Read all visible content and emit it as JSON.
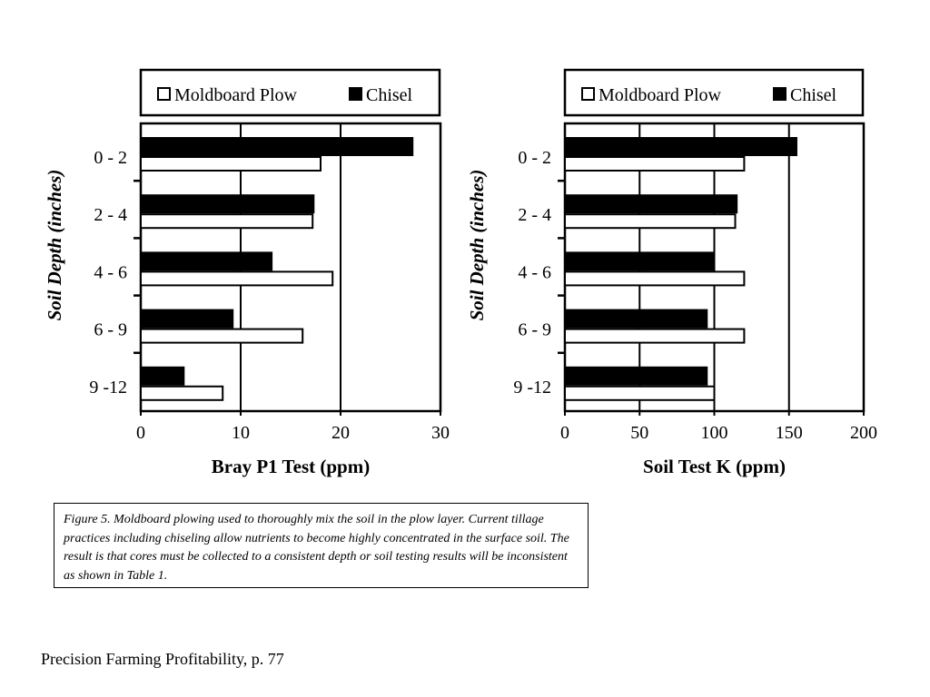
{
  "chart_data": [
    {
      "type": "bar",
      "orientation": "horizontal",
      "categories": [
        "0 - 2",
        "2 - 4",
        "4 - 6",
        "6 - 9",
        "9 -12"
      ],
      "series": [
        {
          "name": "Moldboard Plow",
          "color": "#ffffff",
          "values": [
            18,
            17.2,
            19.2,
            16.2,
            8.2
          ]
        },
        {
          "name": "Chisel",
          "color": "#000000",
          "values": [
            27.2,
            17.3,
            13.1,
            9.2,
            4.3
          ]
        }
      ],
      "xlabel": "Bray P1 Test (ppm)",
      "ylabel": "Soil Depth (inches)",
      "xlim": [
        0,
        30
      ],
      "xticks": [
        "0",
        "10",
        "20",
        "30"
      ],
      "grid": "vertical",
      "legend": "top"
    },
    {
      "type": "bar",
      "orientation": "horizontal",
      "categories": [
        "0 - 2",
        "2 - 4",
        "4 - 6",
        "6 - 9",
        "9 -12"
      ],
      "series": [
        {
          "name": "Moldboard Plow",
          "color": "#ffffff",
          "values": [
            120,
            114,
            120,
            120,
            100
          ]
        },
        {
          "name": "Chisel",
          "color": "#000000",
          "values": [
            155,
            115,
            100,
            95,
            95
          ]
        }
      ],
      "xlabel": "Soil Test K (ppm)",
      "ylabel": "Soil Depth (inches)",
      "xlim": [
        0,
        200
      ],
      "xticks": [
        "0",
        "50",
        "100",
        "150",
        "200"
      ],
      "grid": "vertical",
      "legend": "top"
    }
  ],
  "caption": "Figure 5. Moldboard plowing used to thoroughly mix the soil in the plow layer. Current tillage practices including chiseling allow nutrients to become highly concentrated in the surface soil. The result is that cores must be collected to a consistent depth or soil testing results will be inconsistent as shown in Table 1.",
  "footer": "Precision Farming Profitability,  p. 77"
}
